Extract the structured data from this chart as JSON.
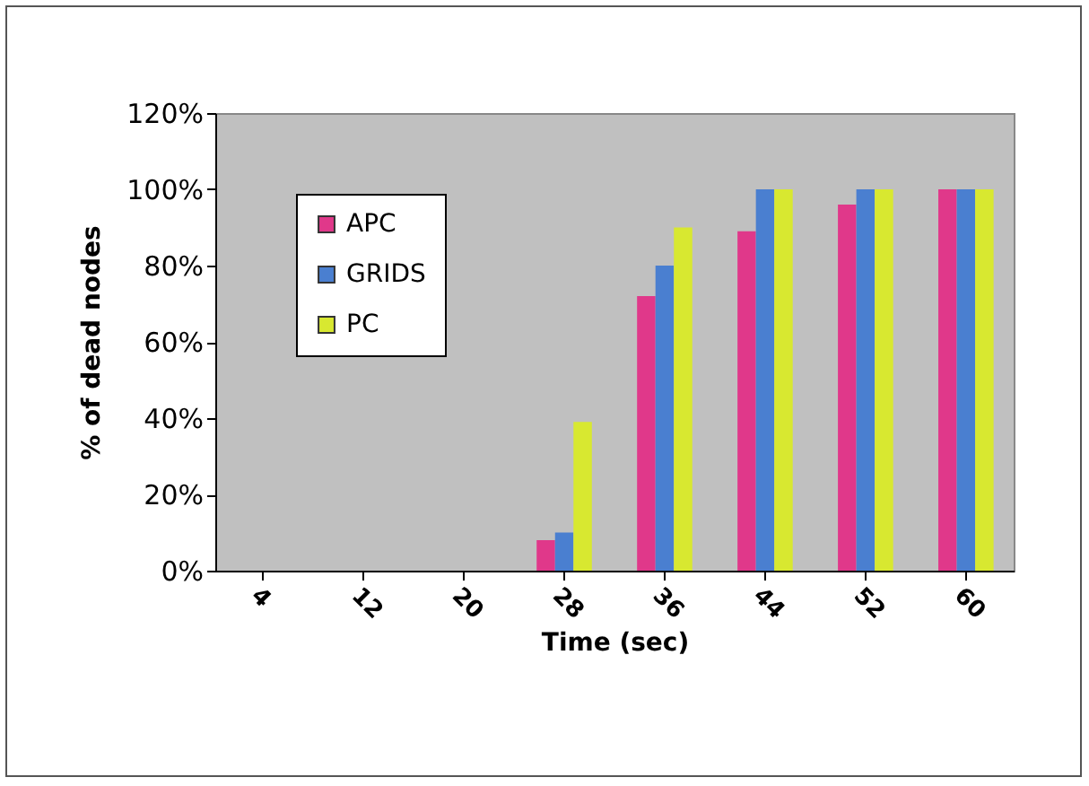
{
  "chart_data": {
    "type": "bar",
    "xlabel": "Time (sec)",
    "ylabel": "% of dead nodes",
    "categories": [
      "4",
      "12",
      "20",
      "28",
      "36",
      "44",
      "52",
      "60"
    ],
    "series": [
      {
        "name": "APC",
        "color": "#e0388a",
        "values": [
          0,
          0,
          0,
          8,
          72,
          89,
          96,
          100
        ]
      },
      {
        "name": "GRIDS",
        "color": "#4a7fd0",
        "values": [
          0,
          0,
          0,
          10,
          80,
          100,
          100,
          100
        ]
      },
      {
        "name": "PC",
        "color": "#d8e830",
        "values": [
          0,
          0,
          0,
          39,
          90,
          100,
          100,
          100
        ]
      }
    ],
    "ylim": [
      0,
      120
    ],
    "yticks": [
      {
        "value": 0,
        "label": "0%"
      },
      {
        "value": 20,
        "label": "20%"
      },
      {
        "value": 40,
        "label": "40%"
      },
      {
        "value": 60,
        "label": "60%"
      },
      {
        "value": 80,
        "label": "80%"
      },
      {
        "value": 100,
        "label": "100%"
      },
      {
        "value": 120,
        "label": "120%"
      }
    ],
    "grid": false,
    "legend": "top left"
  }
}
